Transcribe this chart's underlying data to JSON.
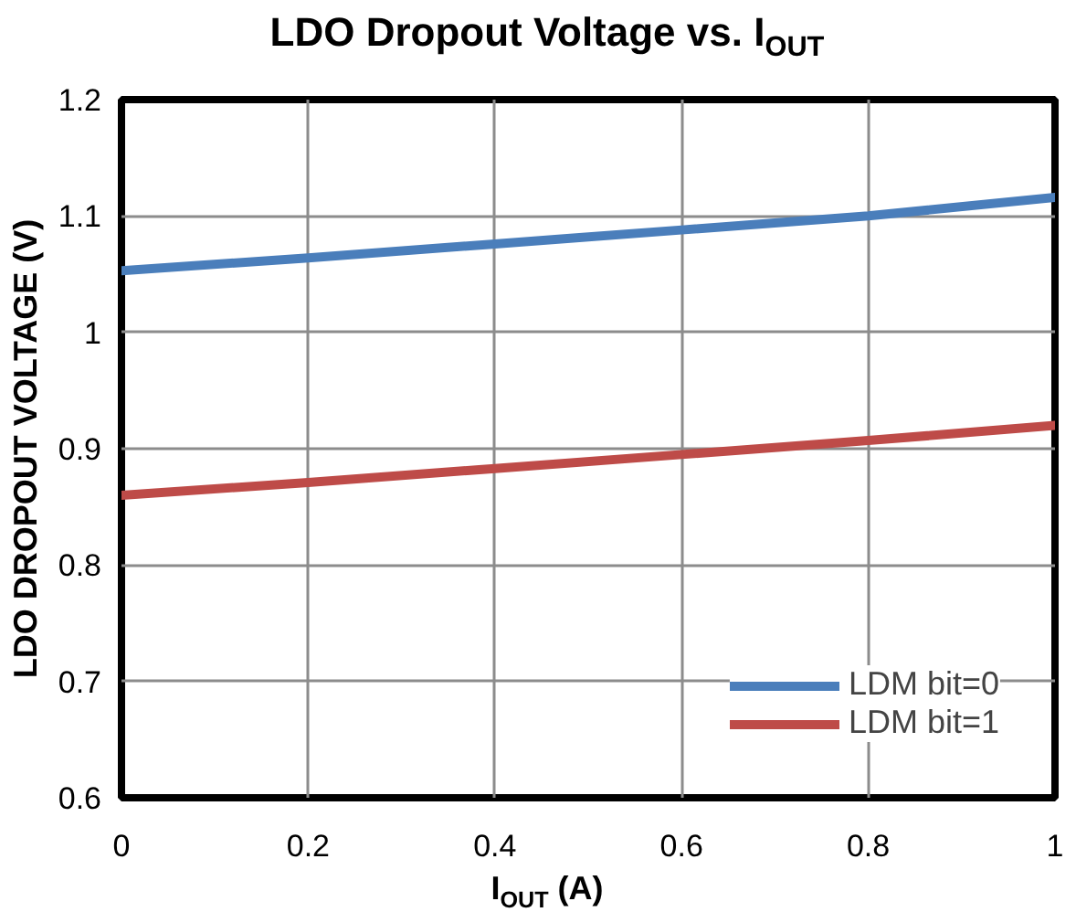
{
  "chart_data": {
    "type": "line",
    "title": "LDO Dropout Voltage vs. I$_{OUT}$",
    "xlabel": "I$_{OUT}$ (A)",
    "ylabel": "LDO DROPOUT VOLTAGE (V)",
    "x": [
      0,
      0.2,
      0.4,
      0.6,
      0.8,
      1
    ],
    "series": [
      {
        "name": "LDM bit=0",
        "color": "#4a7ebb",
        "values": [
          1.053,
          1.064,
          1.076,
          1.088,
          1.1,
          1.116
        ]
      },
      {
        "name": "LDM bit=1",
        "color": "#be4b48",
        "values": [
          0.86,
          0.871,
          0.883,
          0.895,
          0.907,
          0.92
        ]
      }
    ],
    "xlim": [
      0,
      1
    ],
    "ylim": [
      0.6,
      1.2
    ],
    "xticks": [
      0,
      0.2,
      0.4,
      0.6,
      0.8,
      1
    ],
    "yticks": [
      0.6,
      0.7,
      0.8,
      0.9,
      1,
      1.1,
      1.2
    ],
    "grid": true,
    "legend": "bottom right",
    "line_style": "solid",
    "marker": "none"
  }
}
